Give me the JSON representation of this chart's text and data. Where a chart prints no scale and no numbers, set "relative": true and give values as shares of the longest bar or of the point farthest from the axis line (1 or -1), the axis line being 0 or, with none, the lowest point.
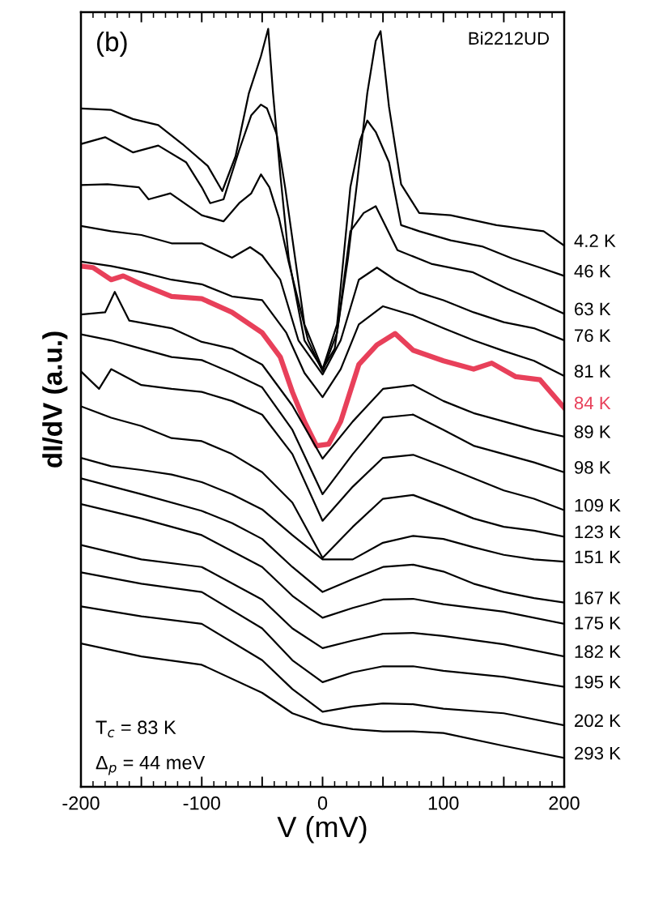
{
  "chart_data": {
    "type": "line",
    "relative": true,
    "xlabel": "V (mV)",
    "ylabel": "dI/dV (a.u.)",
    "xlim": [
      -200,
      200
    ],
    "xticks": [
      -200,
      {
        "value": -150,
        "label": null
      },
      -100,
      {
        "value": -50,
        "label": null
      },
      0,
      {
        "value": 50,
        "label": null
      },
      100,
      {
        "value": 150,
        "label": null
      },
      200
    ],
    "tick_labels": "x",
    "annotations": [
      "(b)",
      "Bi2212UD",
      "T$_{c}$ = 83 K",
      "Δ$_{p}$ = 44 meV"
    ],
    "series": [
      {
        "name": "4.2 K",
        "color": "#000000",
        "x": [
          -200,
          -175,
          -157,
          -136,
          -116,
          -95,
          -83,
          -72,
          -61,
          -51,
          -45,
          -41,
          -35,
          -28,
          -15,
          0,
          10,
          21,
          29,
          37,
          44,
          48,
          55,
          65,
          80,
          106,
          144,
          183,
          200
        ],
        "values": [
          0.895,
          0.893,
          0.881,
          0.873,
          0.848,
          0.819,
          0.786,
          0.832,
          0.915,
          0.964,
          1.0,
          0.915,
          0.808,
          0.697,
          0.589,
          0.551,
          0.578,
          0.697,
          0.803,
          0.915,
          0.984,
          0.997,
          0.897,
          0.795,
          0.757,
          0.754,
          0.741,
          0.733,
          0.714
        ]
      },
      {
        "name": "46 K",
        "color": "#000000",
        "x": [
          -200,
          -180,
          -157,
          -136,
          -113,
          -100,
          -93,
          -82,
          -69,
          -59,
          -51,
          -46,
          -38,
          -31,
          -15,
          0,
          12,
          23,
          31,
          37,
          44,
          55,
          65,
          80,
          106,
          132,
          157,
          180,
          200
        ],
        "values": [
          0.848,
          0.857,
          0.837,
          0.846,
          0.824,
          0.791,
          0.77,
          0.775,
          0.84,
          0.886,
          0.9,
          0.895,
          0.861,
          0.791,
          0.61,
          0.551,
          0.61,
          0.791,
          0.853,
          0.879,
          0.864,
          0.824,
          0.741,
          0.733,
          0.721,
          0.713,
          0.697,
          0.685,
          0.674
        ]
      },
      {
        "name": "63 K",
        "color": "#000000",
        "x": [
          -200,
          -178,
          -152,
          -144,
          -126,
          -100,
          -82,
          -69,
          -59,
          -51,
          -44,
          -36,
          -28,
          -12,
          0,
          12,
          23,
          34,
          44,
          49,
          62,
          90,
          124,
          153,
          175,
          200
        ],
        "values": [
          0.794,
          0.795,
          0.791,
          0.775,
          0.783,
          0.754,
          0.746,
          0.77,
          0.783,
          0.808,
          0.791,
          0.75,
          0.692,
          0.589,
          0.548,
          0.599,
          0.733,
          0.757,
          0.766,
          0.75,
          0.708,
          0.69,
          0.679,
          0.657,
          0.642,
          0.624
        ]
      },
      {
        "name": "76 K",
        "color": "#000000",
        "x": [
          -200,
          -175,
          -150,
          -125,
          -100,
          -75,
          -60,
          -50,
          -35,
          -20,
          0,
          15,
          30,
          45,
          60,
          80,
          100,
          125,
          150,
          175,
          200
        ],
        "values": [
          0.74,
          0.733,
          0.728,
          0.717,
          0.717,
          0.698,
          0.712,
          0.701,
          0.669,
          0.589,
          0.544,
          0.589,
          0.669,
          0.685,
          0.669,
          0.652,
          0.642,
          0.626,
          0.613,
          0.605,
          0.589
        ]
      },
      {
        "name": "81 K",
        "color": "#000000",
        "x": [
          -200,
          -175,
          -150,
          -125,
          -100,
          -75,
          -50,
          -30,
          -15,
          0,
          15,
          30,
          50,
          75,
          100,
          125,
          150,
          175,
          200
        ],
        "values": [
          0.693,
          0.687,
          0.679,
          0.669,
          0.663,
          0.647,
          0.642,
          0.599,
          0.546,
          0.514,
          0.551,
          0.61,
          0.634,
          0.622,
          0.605,
          0.589,
          0.575,
          0.562,
          0.542
        ]
      },
      {
        "name": "84 K",
        "color": "#e8405a",
        "x": [
          -200,
          -190,
          -175,
          -165,
          -150,
          -125,
          -100,
          -75,
          -50,
          -35,
          -25,
          -15,
          -5,
          5,
          15,
          30,
          45,
          60,
          75,
          100,
          125,
          140,
          160,
          180,
          200
        ],
        "values": [
          0.687,
          0.685,
          0.669,
          0.674,
          0.663,
          0.647,
          0.644,
          0.626,
          0.599,
          0.567,
          0.521,
          0.482,
          0.45,
          0.452,
          0.482,
          0.557,
          0.583,
          0.598,
          0.576,
          0.562,
          0.551,
          0.559,
          0.541,
          0.537,
          0.5
        ]
      },
      {
        "name": "89 K",
        "color": "#000000",
        "x": [
          -200,
          -180,
          -172,
          -160,
          -125,
          -100,
          -75,
          -50,
          -25,
          0,
          25,
          50,
          75,
          100,
          125,
          150,
          175,
          200
        ],
        "values": [
          0.623,
          0.626,
          0.653,
          0.615,
          0.605,
          0.587,
          0.578,
          0.557,
          0.503,
          0.433,
          0.482,
          0.525,
          0.53,
          0.509,
          0.493,
          0.482,
          0.471,
          0.462
        ]
      },
      {
        "name": "98 K",
        "color": "#000000",
        "x": [
          -200,
          -175,
          -150,
          -125,
          -100,
          -75,
          -50,
          -25,
          0,
          25,
          50,
          75,
          100,
          125,
          150,
          175,
          200
        ],
        "values": [
          0.597,
          0.589,
          0.578,
          0.567,
          0.563,
          0.546,
          0.527,
          0.471,
          0.386,
          0.439,
          0.487,
          0.491,
          0.471,
          0.45,
          0.439,
          0.428,
          0.415
        ]
      },
      {
        "name": "109 K",
        "color": "#000000",
        "x": [
          -200,
          -185,
          -175,
          -150,
          -125,
          -100,
          -75,
          -50,
          -25,
          0,
          25,
          50,
          75,
          100,
          125,
          150,
          175,
          200
        ],
        "values": [
          0.548,
          0.525,
          0.551,
          0.53,
          0.525,
          0.521,
          0.509,
          0.491,
          0.439,
          0.351,
          0.396,
          0.434,
          0.438,
          0.423,
          0.407,
          0.391,
          0.38,
          0.365
        ]
      },
      {
        "name": "123 K",
        "color": "#000000",
        "x": [
          -200,
          -175,
          -150,
          -125,
          -100,
          -75,
          -50,
          -25,
          0,
          25,
          50,
          75,
          100,
          125,
          150,
          175,
          200
        ],
        "values": [
          0.502,
          0.487,
          0.476,
          0.46,
          0.456,
          0.439,
          0.415,
          0.375,
          0.302,
          0.343,
          0.38,
          0.385,
          0.37,
          0.354,
          0.343,
          0.338,
          0.33
        ]
      },
      {
        "name": "151 K",
        "color": "#000000",
        "x": [
          -200,
          -175,
          -150,
          -125,
          -100,
          -75,
          -50,
          -25,
          0,
          25,
          50,
          75,
          100,
          125,
          150,
          175,
          200
        ],
        "values": [
          0.434,
          0.423,
          0.418,
          0.412,
          0.402,
          0.386,
          0.366,
          0.332,
          0.3,
          0.3,
          0.322,
          0.331,
          0.327,
          0.316,
          0.306,
          0.3,
          0.297
        ]
      },
      {
        "name": "167 K",
        "color": "#000000",
        "x": [
          -200,
          -150,
          -100,
          -75,
          -50,
          -25,
          0,
          25,
          50,
          75,
          100,
          125,
          150,
          175,
          200
        ],
        "values": [
          0.407,
          0.386,
          0.364,
          0.348,
          0.327,
          0.29,
          0.257,
          0.274,
          0.29,
          0.293,
          0.284,
          0.268,
          0.257,
          0.249,
          0.243
        ]
      },
      {
        "name": "175 K",
        "color": "#000000",
        "x": [
          -200,
          -150,
          -100,
          -50,
          -25,
          0,
          25,
          50,
          75,
          100,
          150,
          200
        ],
        "values": [
          0.373,
          0.354,
          0.332,
          0.29,
          0.252,
          0.223,
          0.236,
          0.247,
          0.248,
          0.241,
          0.231,
          0.215
        ]
      },
      {
        "name": "182 K",
        "color": "#000000",
        "x": [
          -200,
          -150,
          -100,
          -50,
          -25,
          0,
          25,
          50,
          75,
          100,
          150,
          200
        ],
        "values": [
          0.319,
          0.3,
          0.29,
          0.247,
          0.209,
          0.183,
          0.193,
          0.202,
          0.203,
          0.199,
          0.188,
          0.172
        ]
      },
      {
        "name": "195 K",
        "color": "#000000",
        "x": [
          -200,
          -150,
          -100,
          -50,
          -25,
          0,
          25,
          50,
          75,
          100,
          150,
          200
        ],
        "values": [
          0.283,
          0.268,
          0.257,
          0.209,
          0.167,
          0.138,
          0.151,
          0.159,
          0.159,
          0.153,
          0.145,
          0.132
        ]
      },
      {
        "name": "202 K",
        "color": "#000000",
        "x": [
          -200,
          -150,
          -100,
          -50,
          -25,
          0,
          25,
          50,
          75,
          100,
          150,
          200
        ],
        "values": [
          0.238,
          0.225,
          0.215,
          0.167,
          0.129,
          0.099,
          0.106,
          0.11,
          0.109,
          0.103,
          0.097,
          0.081
        ]
      },
      {
        "name": "293 K",
        "color": "#000000",
        "x": [
          -200,
          -150,
          -100,
          -50,
          -25,
          0,
          25,
          50,
          75,
          100,
          150,
          200
        ],
        "values": [
          0.189,
          0.172,
          0.161,
          0.124,
          0.097,
          0.083,
          0.076,
          0.073,
          0.073,
          0.071,
          0.054,
          0.038
        ]
      }
    ]
  }
}
